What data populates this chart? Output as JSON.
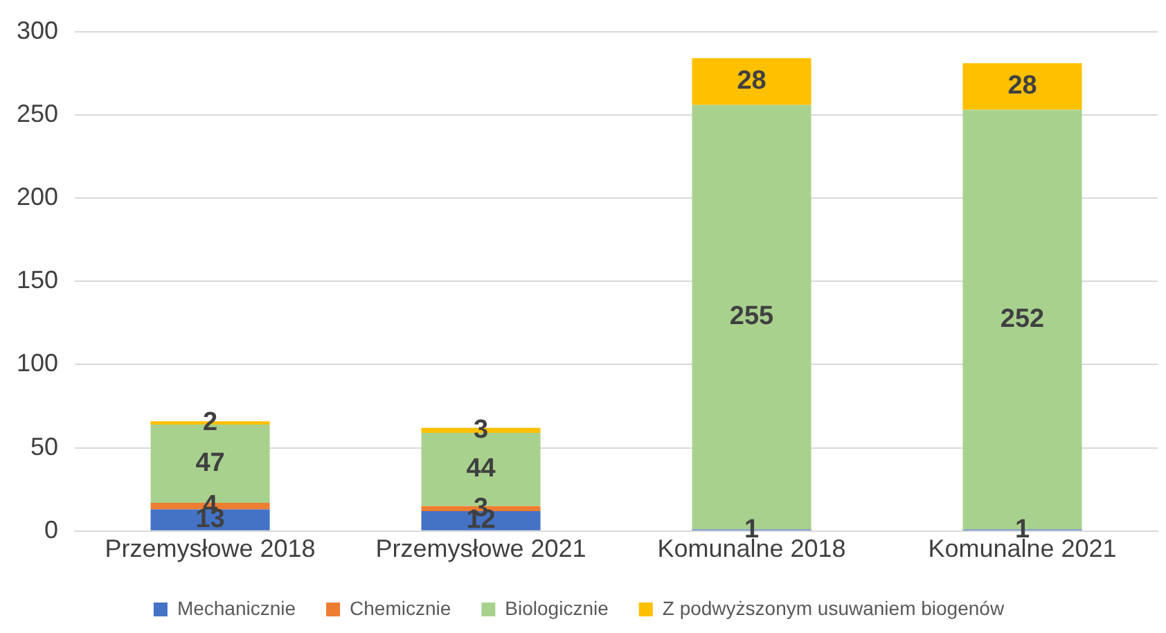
{
  "chart_data": {
    "type": "bar",
    "stacked": true,
    "categories": [
      "Przemysłowe 2018",
      "Przemysłowe 2021",
      "Komunalne 2018",
      "Komunalne 2021"
    ],
    "series": [
      {
        "name": "Mechanicznie",
        "color": "#4472c4",
        "values": [
          13,
          12,
          1,
          1
        ],
        "value_labels": [
          "13",
          "12",
          "1",
          "1"
        ]
      },
      {
        "name": "Chemicznie",
        "color": "#ed7d31",
        "values": [
          4,
          3,
          0,
          0
        ],
        "value_labels": [
          "4",
          "3",
          null,
          null
        ]
      },
      {
        "name": "Biologicznie",
        "color": "#a9d18e",
        "values": [
          47,
          44,
          255,
          252
        ],
        "value_labels": [
          "47",
          "44",
          "255",
          "252"
        ]
      },
      {
        "name": "Z podwyższonym usuwaniem biogenów",
        "color": "#ffc000",
        "values": [
          2,
          3,
          28,
          28
        ],
        "value_labels": [
          "2",
          "3",
          "28",
          "28"
        ]
      }
    ],
    "ylim": [
      0,
      300
    ],
    "yticks": [
      0,
      50,
      100,
      150,
      200,
      250,
      300
    ],
    "grid": "y",
    "legend": "bottom"
  }
}
